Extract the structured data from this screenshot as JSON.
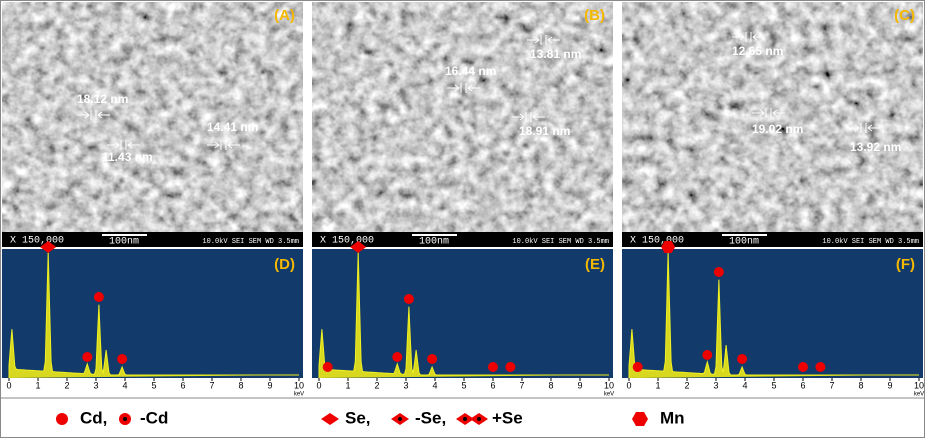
{
  "panels": [
    {
      "label": "(A)",
      "measurements": [
        "18.12 nm",
        "11.43 nm",
        "14.41 nm"
      ],
      "sem_info": {
        "magnification": "X 150,000",
        "scale": "100nm",
        "conditions": "10.0kV SEI SEM WD 3.5mm"
      }
    },
    {
      "label": "(B)",
      "measurements": [
        "16.44 nm",
        "13.81 nm",
        "18.91 nm"
      ],
      "sem_info": {
        "magnification": "X 150,000",
        "scale": "100nm",
        "conditions": "10.0kV SEI SEM WD 3.5mm"
      }
    },
    {
      "label": "(C)",
      "measurements": [
        "12.65 nm",
        "19.02 nm",
        "13.92 nm"
      ],
      "sem_info": {
        "magnification": "X 150,000",
        "scale": "100nm",
        "conditions": "10.0kV SEI SEM WD 3.5mm"
      }
    }
  ],
  "spectra": [
    {
      "label": "(D)",
      "axis_ticks": [
        0,
        1,
        2,
        3,
        4,
        5,
        6,
        7,
        8,
        9,
        10
      ],
      "axis_unit": "keV"
    },
    {
      "label": "(E)",
      "axis_ticks": [
        0,
        1,
        2,
        3,
        4,
        5,
        6,
        7,
        8,
        9,
        10
      ],
      "axis_unit": "keV"
    },
    {
      "label": "(F)",
      "axis_ticks": [
        0,
        1,
        2,
        3,
        4,
        5,
        6,
        7,
        8,
        9,
        10
      ],
      "axis_unit": "keV"
    }
  ],
  "legend": [
    "Cd,",
    "-Cd",
    "Se,",
    "-Se,",
    "+Se",
    "Mn"
  ]
}
